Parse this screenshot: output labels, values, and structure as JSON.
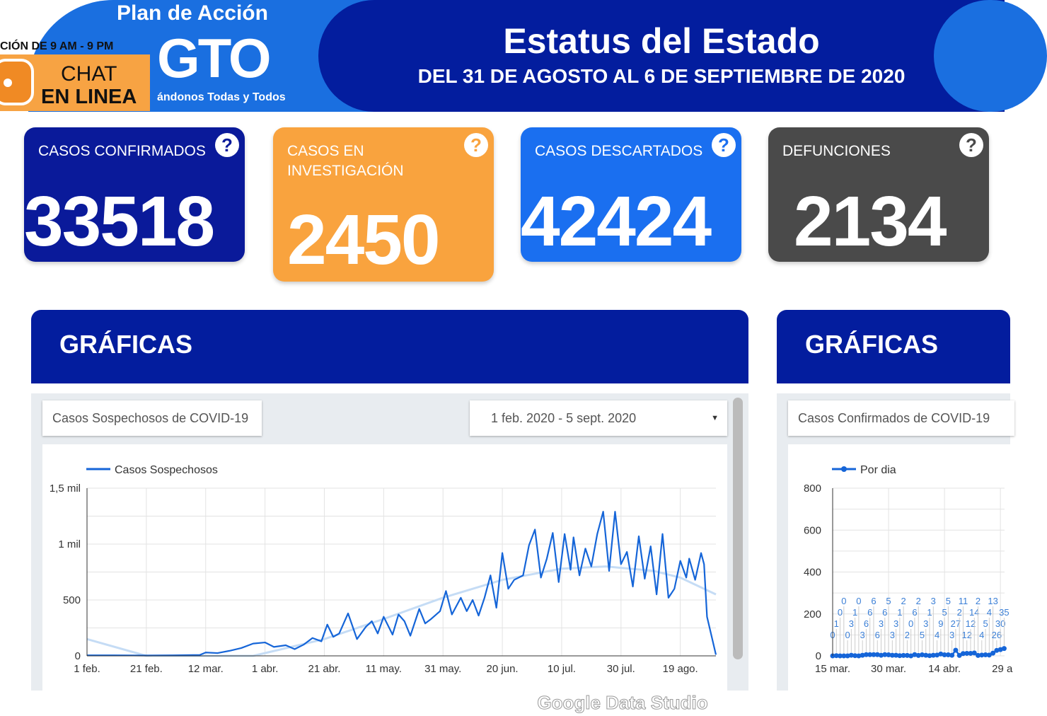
{
  "banner": {
    "plan": "Plan de Acción",
    "logo": "GTO",
    "tagline": "ándonos Todas y Todos",
    "hours": "CIÓN DE 9 AM - 9 PM",
    "chat_line1": "CHAT",
    "chat_line2": "EN LINEA",
    "title": "Estatus del Estado",
    "subtitle": "DEL 31 DE AGOSTO AL 6 DE SEPTIEMBRE DE 2020"
  },
  "cards": [
    {
      "label": "CASOS CONFIRMADOS",
      "value": "33518",
      "color": "#0a1a9a"
    },
    {
      "label": "CASOS EN INVESTIGACIÓN",
      "value": "2450",
      "color": "#f9a33e"
    },
    {
      "label": "CASOS DESCARTADOS",
      "value": "42424",
      "color": "#1a6ff0"
    },
    {
      "label": "DEFUNCIONES",
      "value": "2134",
      "color": "#4a4a4a"
    }
  ],
  "help_icon": "?",
  "sections": [
    {
      "title": "GRÁFICAS"
    },
    {
      "title": "GRÁFICAS"
    }
  ],
  "controls": {
    "left_select": "Casos Sospechosos de COVID-19",
    "date_range": "1 feb. 2020 - 5 sept. 2020",
    "right_select": "Casos Confirmados de COVID-19"
  },
  "watermark": "Google Data Studio",
  "chart_data": [
    {
      "type": "line",
      "legend": "top-left",
      "grid": true,
      "series": [
        {
          "name": "Casos Sospechosos",
          "color": "#1565d8",
          "x": [
            "2020-02-01",
            "2020-02-10",
            "2020-02-20",
            "2020-03-01",
            "2020-03-10",
            "2020-03-12",
            "2020-03-16",
            "2020-03-20",
            "2020-03-24",
            "2020-03-28",
            "2020-04-01",
            "2020-04-04",
            "2020-04-08",
            "2020-04-11",
            "2020-04-14",
            "2020-04-17",
            "2020-04-20",
            "2020-04-22",
            "2020-04-24",
            "2020-04-26",
            "2020-04-29",
            "2020-05-02",
            "2020-05-05",
            "2020-05-07",
            "2020-05-09",
            "2020-05-11",
            "2020-05-14",
            "2020-05-16",
            "2020-05-18",
            "2020-05-20",
            "2020-05-23",
            "2020-05-25",
            "2020-05-27",
            "2020-05-30",
            "2020-06-01",
            "2020-06-03",
            "2020-06-06",
            "2020-06-08",
            "2020-06-10",
            "2020-06-12",
            "2020-06-14",
            "2020-06-16",
            "2020-06-18",
            "2020-06-20",
            "2020-06-22",
            "2020-06-24",
            "2020-06-27",
            "2020-06-29",
            "2020-07-01",
            "2020-07-03",
            "2020-07-05",
            "2020-07-07",
            "2020-07-09",
            "2020-07-11",
            "2020-07-13",
            "2020-07-14",
            "2020-07-16",
            "2020-07-18",
            "2020-07-20",
            "2020-07-22",
            "2020-07-24",
            "2020-07-26",
            "2020-07-28",
            "2020-07-30",
            "2020-08-01",
            "2020-08-03",
            "2020-08-05",
            "2020-08-07",
            "2020-08-09",
            "2020-08-11",
            "2020-08-13",
            "2020-08-15",
            "2020-08-17",
            "2020-08-19",
            "2020-08-21",
            "2020-08-22",
            "2020-08-24",
            "2020-08-26",
            "2020-08-27",
            "2020-08-28",
            "2020-08-31"
          ],
          "values": [
            5,
            5,
            3,
            5,
            8,
            30,
            25,
            45,
            70,
            110,
            120,
            80,
            95,
            60,
            100,
            160,
            130,
            280,
            170,
            200,
            380,
            150,
            260,
            310,
            200,
            350,
            190,
            370,
            310,
            180,
            420,
            290,
            330,
            400,
            580,
            370,
            520,
            400,
            500,
            360,
            520,
            720,
            430,
            920,
            600,
            680,
            720,
            990,
            1130,
            700,
            870,
            1100,
            660,
            1090,
            770,
            1060,
            720,
            960,
            800,
            1090,
            1290,
            760,
            1290,
            820,
            930,
            620,
            1070,
            690,
            980,
            550,
            1090,
            520,
            600,
            850,
            700,
            870,
            680,
            920,
            820,
            350,
            10
          ]
        },
        {
          "name": "trend",
          "color": "#c5dcf5",
          "x": [
            "2020-02-01",
            "2020-02-21",
            "2020-03-28",
            "2020-04-21",
            "2020-05-11",
            "2020-05-31",
            "2020-06-20",
            "2020-07-10",
            "2020-07-25",
            "2020-08-10",
            "2020-08-19",
            "2020-08-31"
          ],
          "values": [
            150,
            0,
            0,
            150,
            330,
            520,
            680,
            780,
            800,
            760,
            700,
            550
          ]
        }
      ],
      "xlim": [
        "2020-02-01",
        "2020-08-31"
      ],
      "x_ticks": [
        "1 feb.",
        "21 feb.",
        "12 mar.",
        "1 abr.",
        "21 abr.",
        "11 may.",
        "31 may.",
        "20 jun.",
        "10 jul.",
        "30 jul.",
        "19 ago."
      ],
      "ylim": [
        0,
        1500
      ],
      "y_ticks": [
        "0",
        "500",
        "1 mil",
        "1,5 mil"
      ]
    },
    {
      "type": "line",
      "legend": "top-left",
      "grid": true,
      "series": [
        {
          "name": "Por dia",
          "color": "#1565d8",
          "values": [
            0,
            1,
            0,
            0,
            0,
            3,
            1,
            0,
            3,
            6,
            6,
            6,
            6,
            3,
            6,
            5,
            3,
            3,
            1,
            2,
            2,
            0,
            6,
            2,
            5,
            3,
            1,
            3,
            4,
            9,
            5,
            5,
            3,
            27,
            2,
            11,
            12,
            12,
            14,
            2,
            4,
            5,
            4,
            13,
            26,
            30,
            35
          ]
        }
      ],
      "x_ticks": [
        "15 mar.",
        "30 mar.",
        "14 abr.",
        "29 a"
      ],
      "ylim": [
        0,
        800
      ],
      "y_ticks": [
        "0",
        "200",
        "400",
        "600",
        "800"
      ]
    }
  ]
}
